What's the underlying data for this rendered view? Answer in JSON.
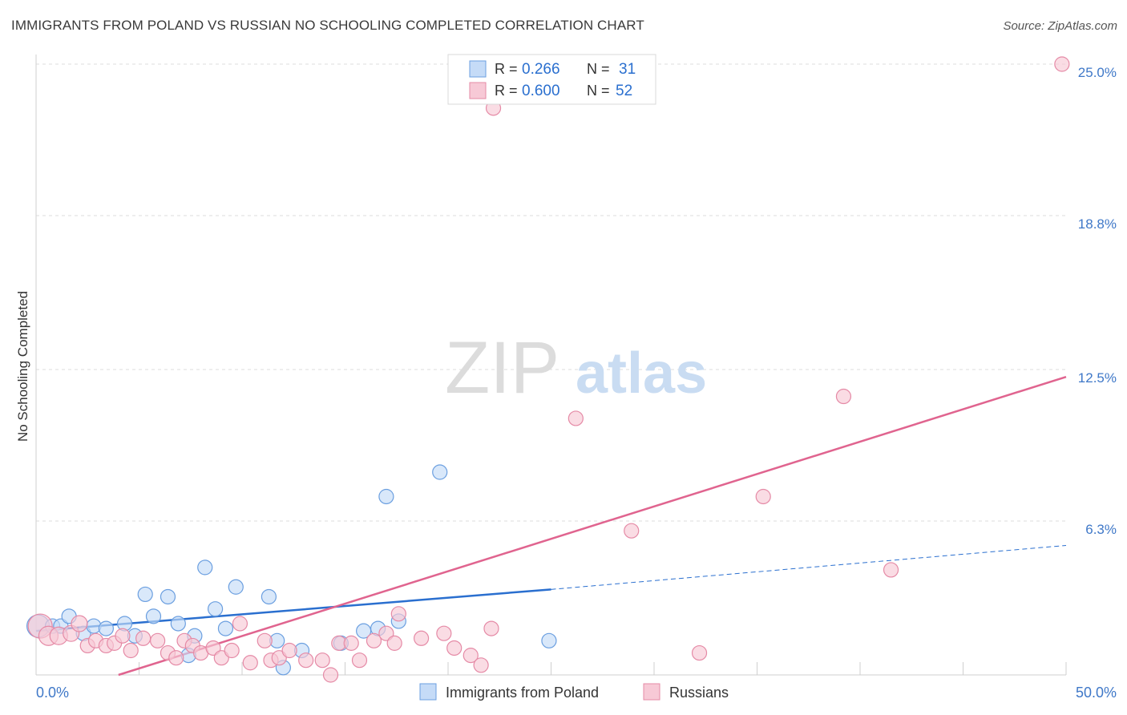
{
  "chart_data": {
    "type": "scatter",
    "title": "IMMIGRANTS FROM POLAND VS RUSSIAN NO SCHOOLING COMPLETED CORRELATION CHART",
    "source": "Source: ZipAtlas.com",
    "watermark": {
      "zip": "ZIP",
      "atlas": "atlas"
    },
    "xlabel": "",
    "ylabel": "No Schooling Completed",
    "xlim": [
      0,
      50
    ],
    "ylim": [
      0,
      26
    ],
    "x_tick_labels": [
      {
        "value": 0,
        "label": "0.0%"
      },
      {
        "value": 50,
        "label": "50.0%"
      }
    ],
    "x_minor_ticks": [
      5,
      10,
      15,
      20,
      25,
      30,
      35,
      40,
      45,
      50
    ],
    "y_ticks": [
      {
        "value": 6.3,
        "label": "6.3%"
      },
      {
        "value": 12.5,
        "label": "12.5%"
      },
      {
        "value": 18.8,
        "label": "18.8%"
      },
      {
        "value": 25.0,
        "label": "25.0%"
      }
    ],
    "grid": true,
    "legend_position": "top-center",
    "stats": [
      {
        "r_label": "R =",
        "r_value": "0.266",
        "n_label": "N =",
        "n_value": "31"
      },
      {
        "r_label": "R =",
        "r_value": "0.600",
        "n_label": "N =",
        "n_value": "52"
      }
    ],
    "series": [
      {
        "name": "Immigrants from Poland",
        "color": "#6b9fe0",
        "fill": "#c5dbf7",
        "line_color": "#2a6fcf",
        "trend": {
          "x_start": 0,
          "y_start": 1.8,
          "x_solid_end": 25,
          "y_solid_end": 3.5,
          "x_dash_end": 50,
          "y_dash_end": 5.3
        },
        "points": [
          [
            0.1,
            2.0,
            14
          ],
          [
            0.8,
            2.0,
            9
          ],
          [
            1.2,
            2.0,
            9
          ],
          [
            1.6,
            2.4,
            9
          ],
          [
            2.3,
            1.7,
            9
          ],
          [
            2.8,
            2.0,
            9
          ],
          [
            3.4,
            1.9,
            9
          ],
          [
            4.3,
            2.1,
            9
          ],
          [
            4.8,
            1.6,
            9
          ],
          [
            5.3,
            3.3,
            9
          ],
          [
            5.7,
            2.4,
            9
          ],
          [
            6.4,
            3.2,
            9
          ],
          [
            6.9,
            2.1,
            9
          ],
          [
            7.4,
            0.8,
            9
          ],
          [
            7.7,
            1.6,
            9
          ],
          [
            8.2,
            4.4,
            9
          ],
          [
            8.7,
            2.7,
            9
          ],
          [
            9.2,
            1.9,
            9
          ],
          [
            9.7,
            3.6,
            9
          ],
          [
            11.3,
            3.2,
            9
          ],
          [
            11.7,
            1.4,
            9
          ],
          [
            12.0,
            0.3,
            9
          ],
          [
            12.9,
            1.0,
            9
          ],
          [
            14.8,
            1.3,
            9
          ],
          [
            15.9,
            1.8,
            9
          ],
          [
            16.6,
            1.9,
            9
          ],
          [
            17.0,
            7.3,
            9
          ],
          [
            17.6,
            2.2,
            9
          ],
          [
            19.6,
            8.3,
            9
          ],
          [
            24.9,
            1.4,
            9
          ]
        ]
      },
      {
        "name": "Russians",
        "color": "#e58aa6",
        "fill": "#f7c9d6",
        "line_color": "#e0648f",
        "trend": {
          "x_start": 4,
          "y_start": 0,
          "x_end": 50,
          "y_end": 12.2
        },
        "points": [
          [
            0.2,
            2.0,
            15
          ],
          [
            0.6,
            1.6,
            12
          ],
          [
            1.1,
            1.6,
            11
          ],
          [
            1.7,
            1.7,
            10
          ],
          [
            2.1,
            2.1,
            10
          ],
          [
            2.5,
            1.2,
            9
          ],
          [
            2.9,
            1.4,
            9
          ],
          [
            3.4,
            1.2,
            9
          ],
          [
            3.8,
            1.3,
            9
          ],
          [
            4.2,
            1.6,
            9
          ],
          [
            4.6,
            1.0,
            9
          ],
          [
            5.2,
            1.5,
            9
          ],
          [
            5.9,
            1.4,
            9
          ],
          [
            6.4,
            0.9,
            9
          ],
          [
            6.8,
            0.7,
            9
          ],
          [
            7.2,
            1.4,
            9
          ],
          [
            7.6,
            1.2,
            9
          ],
          [
            8.0,
            0.9,
            9
          ],
          [
            8.6,
            1.1,
            9
          ],
          [
            9.0,
            0.7,
            9
          ],
          [
            9.5,
            1.0,
            9
          ],
          [
            9.9,
            2.1,
            9
          ],
          [
            10.4,
            0.5,
            9
          ],
          [
            11.1,
            1.4,
            9
          ],
          [
            11.4,
            0.6,
            9
          ],
          [
            11.8,
            0.7,
            9
          ],
          [
            12.3,
            1.0,
            9
          ],
          [
            13.1,
            0.6,
            9
          ],
          [
            13.9,
            0.6,
            9
          ],
          [
            14.3,
            0.0,
            9
          ],
          [
            14.7,
            1.3,
            9
          ],
          [
            15.3,
            1.3,
            9
          ],
          [
            15.7,
            0.6,
            9
          ],
          [
            16.4,
            1.4,
            9
          ],
          [
            17.0,
            1.7,
            9
          ],
          [
            17.4,
            1.3,
            9
          ],
          [
            17.6,
            2.5,
            9
          ],
          [
            18.7,
            1.5,
            9
          ],
          [
            19.8,
            1.7,
            9
          ],
          [
            20.3,
            1.1,
            9
          ],
          [
            21.1,
            0.8,
            9
          ],
          [
            21.6,
            0.4,
            9
          ],
          [
            22.1,
            1.9,
            9
          ],
          [
            22.2,
            23.2,
            9
          ],
          [
            26.2,
            10.5,
            9
          ],
          [
            28.9,
            5.9,
            9
          ],
          [
            32.2,
            0.9,
            9
          ],
          [
            35.3,
            7.3,
            9
          ],
          [
            39.2,
            11.4,
            9
          ],
          [
            41.5,
            4.3,
            9
          ],
          [
            49.8,
            25.0,
            9
          ]
        ]
      }
    ]
  }
}
